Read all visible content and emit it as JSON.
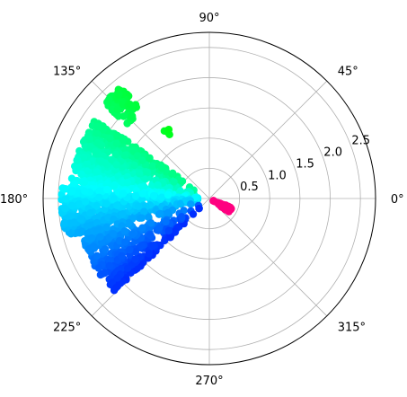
{
  "chart_data": {
    "type": "scatter",
    "projection": "polar",
    "title": "",
    "theta_unit": "degrees",
    "r_max": 2.75,
    "r_ticks": [
      0.5,
      1.0,
      1.5,
      2.0,
      2.5
    ],
    "r_tick_labels": [
      "0.5",
      "1.0",
      "1.5",
      "2.0",
      "2.5"
    ],
    "theta_ticks": [
      0,
      45,
      90,
      135,
      180,
      225,
      270,
      315
    ],
    "theta_tick_labels": [
      "0°",
      "45°",
      "90°",
      "135°",
      "180°",
      "225°",
      "270°",
      "315°"
    ],
    "grid": true,
    "colormap": "hue by angle (hsv)",
    "clusters": [
      {
        "label": "pink-red wedge",
        "color": "#ff0080",
        "theta_range": [
          325,
          338
        ],
        "r_range": [
          0.05,
          0.4
        ],
        "count": 80
      },
      {
        "label": "green fan",
        "color": "#00ff60",
        "theta_range": [
          145,
          175
        ],
        "r_range": [
          0.2,
          2.3
        ],
        "count": 520
      },
      {
        "label": "cyan band",
        "color": "#00ffe8",
        "theta_range": [
          175,
          195
        ],
        "r_range": [
          0.1,
          2.45
        ],
        "count": 480
      },
      {
        "label": "blue lower arm",
        "color": "#0070ff",
        "theta_range": [
          195,
          225
        ],
        "r_range": [
          0.1,
          2.2
        ],
        "count": 330
      },
      {
        "label": "upper green arm",
        "color": "#00ff30",
        "theta_range": [
          128,
          138
        ],
        "r_range": [
          1.8,
          2.35
        ],
        "count": 90
      },
      {
        "label": "isolated green",
        "color": "#00ff40",
        "theta_range": [
          120,
          124
        ],
        "r_range": [
          1.2,
          1.35
        ],
        "count": 6
      }
    ]
  }
}
